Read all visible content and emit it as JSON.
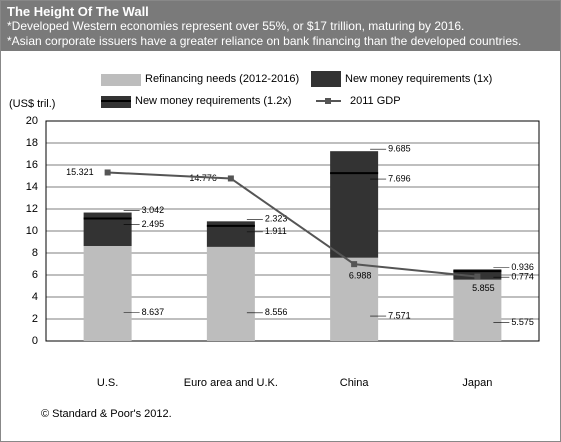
{
  "chart_data": {
    "type": "bar",
    "title": "The Height Of The Wall",
    "subtitle": [
      "*Developed Western economies represent over 55%, or $17 trillion, maturing by 2016.",
      "*Asian corporate  issuers have a greater reliance on bank financing than the developed countries."
    ],
    "y_label": "(US$ tril.)",
    "source": "© Standard & Poor's 2012.",
    "categories": [
      "U.S.",
      "Euro area and U.K.",
      "China",
      "Japan"
    ],
    "series": [
      {
        "name": "Refinancing needs (2012-2016)",
        "color": "#bdbdbd",
        "values": [
          8.637,
          8.556,
          7.571,
          5.575
        ]
      },
      {
        "name": "New money requirements (1x)",
        "color": "#000000",
        "values": [
          2.495,
          1.911,
          7.696,
          0.774
        ]
      },
      {
        "name": "New money requirements (1.2x)",
        "color": "#333333",
        "values": [
          3.042,
          2.323,
          9.685,
          0.936
        ]
      },
      {
        "name": "2011 GDP",
        "color": "#555555",
        "values": [
          15.321,
          14.776,
          6.988,
          5.855
        ]
      }
    ],
    "ylim": [
      0,
      20
    ],
    "yticks": [
      0,
      2,
      4,
      6,
      8,
      10,
      12,
      14,
      16,
      18,
      20
    ],
    "grid": true
  }
}
